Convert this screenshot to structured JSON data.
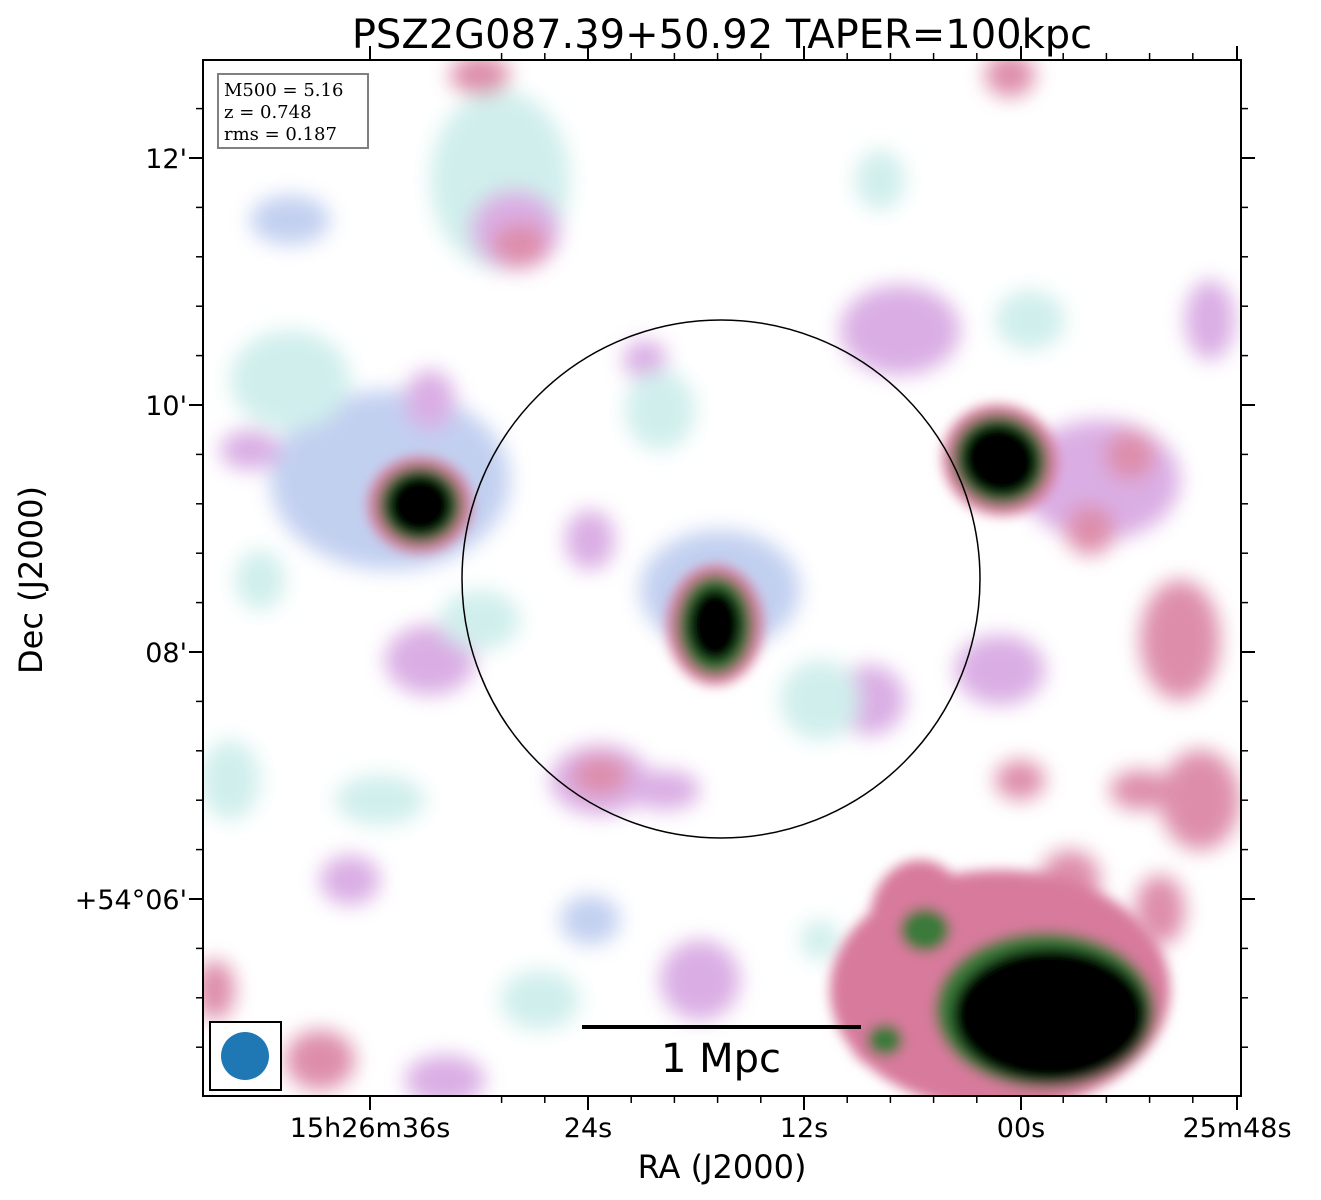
{
  "chart_data": {
    "type": "heatmap",
    "title": "PSZ2G087.39+50.92 TAPER=100kpc",
    "xlabel": "RA (J2000)",
    "ylabel": "Dec (J2000)",
    "x_ticks": [
      "15h26m36s",
      "24s",
      "12s",
      "00s",
      "25m48s"
    ],
    "y_ticks": [
      "12'",
      "10'",
      "08'",
      "+54°06'"
    ],
    "info_box": [
      "M500 = 5.16",
      "z = 0.748",
      "rms = 0.187"
    ],
    "scalebar_label": "1 Mpc",
    "colormap": "cubehelix-like (white → blue → pink → green → black)",
    "grid": false,
    "circle": "R500 aperture centered on cluster",
    "beam": "circular beam, lower-left",
    "colors": {
      "beam": "#1f77b4",
      "info_box_border": "#808080",
      "low": "#c8ece9",
      "mid_blue": "#b8c8ee",
      "mid_pink": "#d4a0e0",
      "high_pink": "#d87a9c",
      "green": "#3a7a3a",
      "peak": "#000000"
    }
  }
}
